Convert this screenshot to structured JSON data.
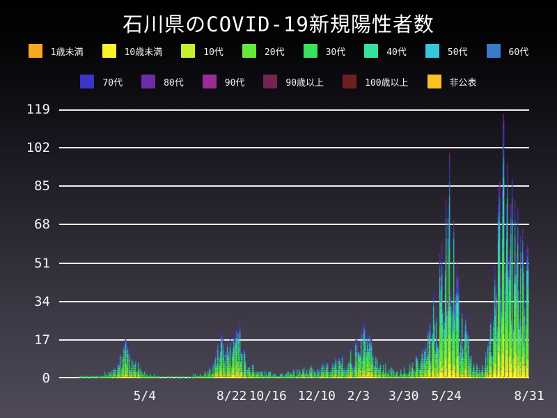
{
  "chart_data": {
    "type": "stacked-bar",
    "title": "石川県のCOVID-19新規陽性者数",
    "xlabel": "",
    "ylabel": "",
    "y_ticks": [
      0,
      17,
      34,
      51,
      68,
      85,
      102,
      119
    ],
    "y_max": 119,
    "grid": true,
    "legend_position": "top",
    "x_ticks": [
      {
        "label": "5/4",
        "pos": 0.182
      },
      {
        "label": "8/22",
        "pos": 0.367
      },
      {
        "label": "10/16",
        "pos": 0.444
      },
      {
        "label": "12/10",
        "pos": 0.548
      },
      {
        "label": "2/3",
        "pos": 0.637
      },
      {
        "label": "3/30",
        "pos": 0.733
      },
      {
        "label": "5/24",
        "pos": 0.824
      },
      {
        "label": "8/31",
        "pos": 1.0
      }
    ],
    "series": [
      {
        "name": "1歳未満",
        "color": "#F7A823",
        "share": 0.4
      },
      {
        "name": "10歳未満",
        "color": "#FAF32B",
        "share": 7
      },
      {
        "name": "10代",
        "color": "#C6F02F",
        "share": 9
      },
      {
        "name": "20代",
        "color": "#64E93B",
        "share": 22
      },
      {
        "name": "30代",
        "color": "#39E25A",
        "share": 16
      },
      {
        "name": "40代",
        "color": "#35E19E",
        "share": 14
      },
      {
        "name": "50代",
        "color": "#39C6DD",
        "share": 12
      },
      {
        "name": "60代",
        "color": "#3B79C9",
        "share": 9
      },
      {
        "name": "70代",
        "color": "#3A35C4",
        "share": 6
      },
      {
        "name": "80代",
        "color": "#6C2EA6",
        "share": 3
      },
      {
        "name": "90代",
        "color": "#992C95",
        "share": 1.2
      },
      {
        "name": "90歳以上",
        "color": "#752350",
        "share": 0.4
      },
      {
        "name": "100歳以上",
        "color": "#6E2021",
        "share": 0.15
      },
      {
        "name": "非公表",
        "color": "#FBC224",
        "share": 0.25
      }
    ],
    "legend_rows": [
      8,
      6
    ],
    "days": 560,
    "daily_envelope": [
      [
        0.0,
        0
      ],
      [
        0.03,
        0
      ],
      [
        0.04,
        1
      ],
      [
        0.06,
        1
      ],
      [
        0.09,
        2
      ],
      [
        0.12,
        5
      ],
      [
        0.138,
        16
      ],
      [
        0.142,
        19
      ],
      [
        0.15,
        12
      ],
      [
        0.163,
        8
      ],
      [
        0.185,
        3
      ],
      [
        0.21,
        1
      ],
      [
        0.24,
        1
      ],
      [
        0.27,
        1
      ],
      [
        0.3,
        2
      ],
      [
        0.315,
        4
      ],
      [
        0.33,
        10
      ],
      [
        0.345,
        21
      ],
      [
        0.357,
        16
      ],
      [
        0.372,
        20
      ],
      [
        0.385,
        26
      ],
      [
        0.395,
        14
      ],
      [
        0.41,
        7
      ],
      [
        0.43,
        4
      ],
      [
        0.46,
        3
      ],
      [
        0.49,
        3
      ],
      [
        0.52,
        5
      ],
      [
        0.555,
        7
      ],
      [
        0.59,
        9
      ],
      [
        0.615,
        13
      ],
      [
        0.635,
        18
      ],
      [
        0.648,
        27
      ],
      [
        0.662,
        20
      ],
      [
        0.68,
        12
      ],
      [
        0.7,
        6
      ],
      [
        0.72,
        3
      ],
      [
        0.745,
        6
      ],
      [
        0.765,
        12
      ],
      [
        0.79,
        28
      ],
      [
        0.81,
        55
      ],
      [
        0.825,
        80
      ],
      [
        0.832,
        100
      ],
      [
        0.841,
        70
      ],
      [
        0.852,
        45
      ],
      [
        0.865,
        28
      ],
      [
        0.88,
        12
      ],
      [
        0.893,
        5
      ],
      [
        0.905,
        9
      ],
      [
        0.916,
        20
      ],
      [
        0.928,
        50
      ],
      [
        0.938,
        85
      ],
      [
        0.947,
        117
      ],
      [
        0.956,
        95
      ],
      [
        0.966,
        88
      ],
      [
        0.976,
        75
      ],
      [
        0.988,
        66
      ],
      [
        1.0,
        58
      ]
    ],
    "notable_peak_values": [
      19,
      26,
      27,
      100,
      117
    ]
  },
  "layout_colors": {
    "gridline": "#ffffff",
    "text": "#f2f2f4"
  }
}
